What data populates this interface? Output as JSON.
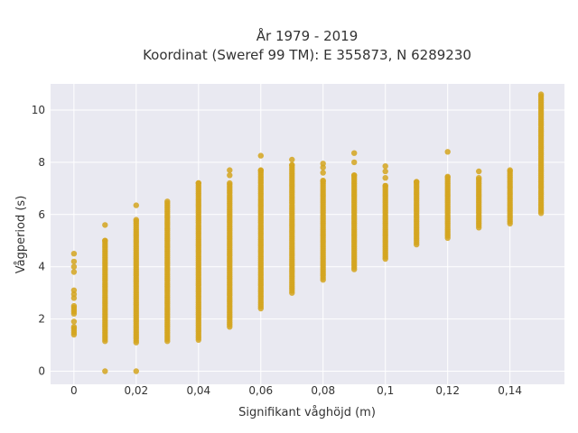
{
  "chart_data": {
    "type": "scatter",
    "title_line1": "År 1979 - 2019",
    "title_line2": "Koordinat (Sweref 99 TM): E 355873, N 6289230",
    "xlabel": "Signifikant våghöjd (m)",
    "ylabel": "Vågperiod (s)",
    "xlim": [
      -0.0075,
      0.1575
    ],
    "ylim": [
      -0.5,
      11.0
    ],
    "x_ticks": [
      0,
      0.02,
      0.04,
      0.06,
      0.08,
      0.1,
      0.12,
      0.14
    ],
    "x_tick_labels": [
      "0",
      "0,02",
      "0,04",
      "0,06",
      "0,08",
      "0,1",
      "0,12",
      "0,14"
    ],
    "y_ticks": [
      0,
      2,
      4,
      6,
      8,
      10
    ],
    "y_tick_labels": [
      "0",
      "2",
      "4",
      "6",
      "8",
      "10"
    ],
    "grid": true,
    "colors": {
      "background": "#e9e9f1",
      "points": "#d4a51f",
      "grid": "#ffffff"
    },
    "columns": [
      {
        "x": 0.0,
        "ranges": [
          [
            1.4,
            1.7
          ],
          [
            2.2,
            2.5
          ]
        ],
        "points": [
          1.9,
          2.8,
          2.95,
          3.1,
          3.8,
          4.0,
          4.2,
          4.5
        ]
      },
      {
        "x": 0.01,
        "ranges": [
          [
            1.15,
            5.0
          ]
        ],
        "points": [
          0.0,
          5.6
        ]
      },
      {
        "x": 0.02,
        "ranges": [
          [
            1.1,
            5.8
          ]
        ],
        "points": [
          0.0,
          6.35
        ]
      },
      {
        "x": 0.03,
        "ranges": [
          [
            1.15,
            6.5
          ]
        ],
        "points": []
      },
      {
        "x": 0.04,
        "ranges": [
          [
            1.2,
            7.2
          ]
        ],
        "points": []
      },
      {
        "x": 0.05,
        "ranges": [
          [
            1.7,
            7.2
          ]
        ],
        "points": [
          7.5,
          7.7
        ]
      },
      {
        "x": 0.06,
        "ranges": [
          [
            2.4,
            7.7
          ]
        ],
        "points": [
          8.25
        ]
      },
      {
        "x": 0.07,
        "ranges": [
          [
            3.0,
            7.9
          ]
        ],
        "points": [
          8.1
        ]
      },
      {
        "x": 0.08,
        "ranges": [
          [
            3.5,
            7.3
          ]
        ],
        "points": [
          7.6,
          7.8,
          7.95
        ]
      },
      {
        "x": 0.09,
        "ranges": [
          [
            3.9,
            7.5
          ]
        ],
        "points": [
          8.0,
          8.35
        ]
      },
      {
        "x": 0.1,
        "ranges": [
          [
            4.3,
            7.1
          ]
        ],
        "points": [
          7.4,
          7.65,
          7.85
        ]
      },
      {
        "x": 0.11,
        "ranges": [
          [
            4.85,
            7.25
          ]
        ],
        "points": []
      },
      {
        "x": 0.12,
        "ranges": [
          [
            5.1,
            7.45
          ]
        ],
        "points": [
          8.4
        ]
      },
      {
        "x": 0.13,
        "ranges": [
          [
            5.5,
            7.4
          ]
        ],
        "points": [
          7.65
        ]
      },
      {
        "x": 0.14,
        "ranges": [
          [
            5.65,
            7.7
          ]
        ],
        "points": []
      },
      {
        "x": 0.15,
        "ranges": [
          [
            6.05,
            10.6
          ]
        ],
        "points": []
      }
    ]
  }
}
